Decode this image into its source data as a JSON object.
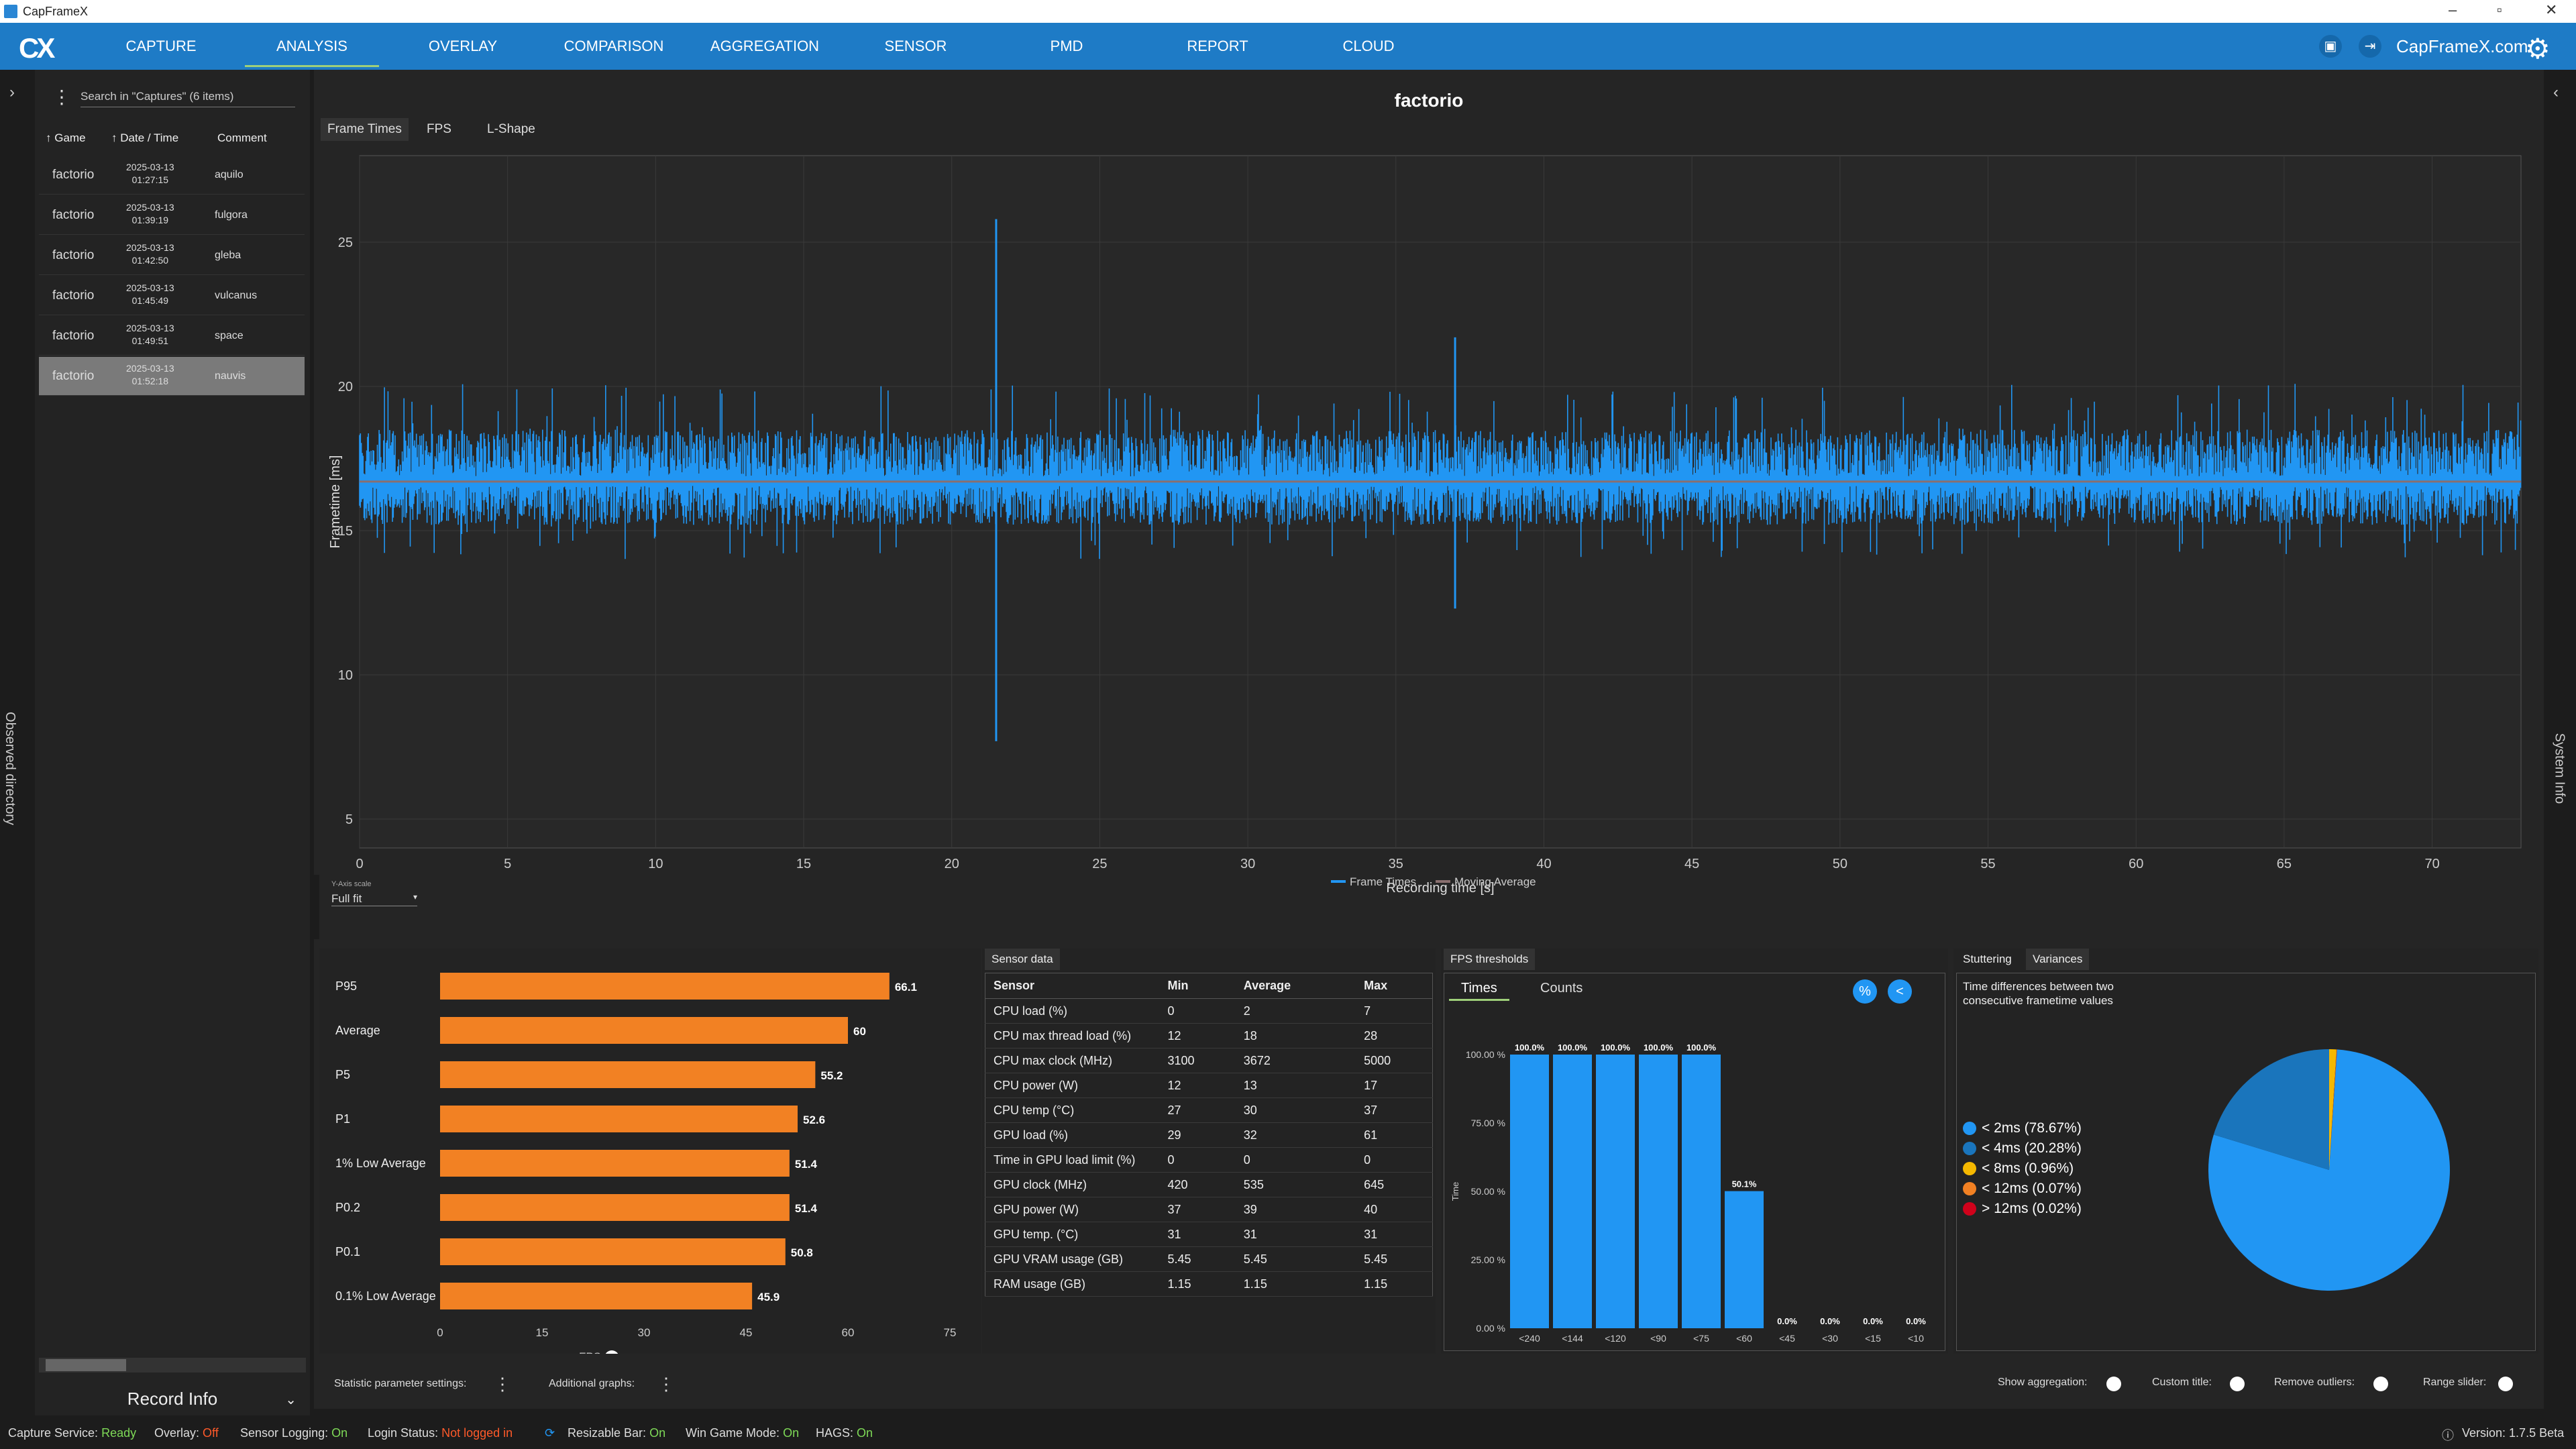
{
  "window": {
    "title": "CapFrameX"
  },
  "nav": {
    "items": [
      "CAPTURE",
      "ANALYSIS",
      "OVERLAY",
      "COMPARISON",
      "AGGREGATION",
      "SENSOR",
      "PMD",
      "REPORT",
      "CLOUD"
    ],
    "active": "ANALYSIS",
    "site": "CapFrameX.com"
  },
  "left_edge": {
    "label": "Observed directory"
  },
  "right_edge": {
    "label": "System Info"
  },
  "captures": {
    "search_placeholder": "Search in \"Captures\" (6 items)",
    "columns": [
      "Game",
      "Date / Time",
      "Comment"
    ],
    "rows": [
      {
        "game": "factorio",
        "date": "2025-03-13",
        "time": "01:27:15",
        "comment": "aquilo"
      },
      {
        "game": "factorio",
        "date": "2025-03-13",
        "time": "01:39:19",
        "comment": "fulgora"
      },
      {
        "game": "factorio",
        "date": "2025-03-13",
        "time": "01:42:50",
        "comment": "gleba"
      },
      {
        "game": "factorio",
        "date": "2025-03-13",
        "time": "01:45:49",
        "comment": "vulcanus"
      },
      {
        "game": "factorio",
        "date": "2025-03-13",
        "time": "01:49:51",
        "comment": "space"
      },
      {
        "game": "factorio",
        "date": "2025-03-13",
        "time": "01:52:18",
        "comment": "nauvis"
      }
    ],
    "selected_index": 5,
    "record_info": "Record Info"
  },
  "analysis": {
    "title": "factorio",
    "tabs": [
      "Frame Times",
      "FPS",
      "L-Shape"
    ],
    "active_tab": "Frame Times",
    "yscale_label": "Y-Axis scale",
    "yscale_value": "Full fit"
  },
  "chart_data": {
    "type": "line",
    "xlabel": "Recording time [s]",
    "ylabel": "Frametime [ms]",
    "xlim": [
      0,
      73
    ],
    "ylim": [
      4,
      28
    ],
    "xticks": [
      0,
      5,
      10,
      15,
      20,
      25,
      30,
      35,
      40,
      45,
      50,
      55,
      60,
      65,
      70
    ],
    "yticks": [
      5,
      10,
      15,
      20,
      25
    ],
    "series": [
      {
        "name": "Frame Times",
        "baseline": 16.7,
        "band": [
          15.2,
          18.5
        ],
        "spikes": [
          {
            "x": 21.5,
            "min": 7.7,
            "max": 25.8
          },
          {
            "x": 37.0,
            "min": 12.3,
            "max": 21.7
          }
        ]
      },
      {
        "name": "Moving Average",
        "value": 16.7
      }
    ],
    "colors": {
      "frame_times": "#2196f3",
      "moving_average": "#8a6f6f"
    }
  },
  "stats": {
    "labels": [
      "P95",
      "Average",
      "P5",
      "P1",
      "1% Low Average",
      "P0.2",
      "P0.1",
      "0.1% Low Average"
    ],
    "values": [
      66.1,
      60,
      55.2,
      52.6,
      51.4,
      51.4,
      50.8,
      45.9
    ],
    "xticks": [
      0,
      15,
      30,
      45,
      60,
      75
    ],
    "xlim": [
      0,
      75
    ],
    "unit_left": "FPS",
    "unit_right": "ms",
    "color": "#f28123"
  },
  "sensor": {
    "header": "Sensor data",
    "columns": [
      "Sensor",
      "Min",
      "Average",
      "Max"
    ],
    "rows": [
      [
        "CPU load (%)",
        "0",
        "2",
        "7"
      ],
      [
        "CPU max thread load (%)",
        "12",
        "18",
        "28"
      ],
      [
        "CPU max clock (MHz)",
        "3100",
        "3672",
        "5000"
      ],
      [
        "CPU power (W)",
        "12",
        "13",
        "17"
      ],
      [
        "CPU temp (°C)",
        "27",
        "30",
        "37"
      ],
      [
        "GPU load (%)",
        "29",
        "32",
        "61"
      ],
      [
        "Time in GPU load limit (%)",
        "0",
        "0",
        "0"
      ],
      [
        "GPU clock (MHz)",
        "420",
        "535",
        "645"
      ],
      [
        "GPU power (W)",
        "37",
        "39",
        "40"
      ],
      [
        "GPU temp. (°C)",
        "31",
        "31",
        "31"
      ],
      [
        "GPU VRAM usage (GB)",
        "5.45",
        "5.45",
        "5.45"
      ],
      [
        "RAM usage (GB)",
        "1.15",
        "1.15",
        "1.15"
      ]
    ]
  },
  "fps_thresholds": {
    "header": "FPS thresholds",
    "tabs": [
      "Times",
      "Counts"
    ],
    "ylabel": "Time",
    "yticks": [
      "100.00 %",
      "75.00 %",
      "50.00 %",
      "25.00 %",
      "0.00 %"
    ],
    "categories": [
      "<240",
      "<144",
      "<120",
      "<90",
      "<75",
      "<60",
      "<45",
      "<30",
      "<15",
      "<10"
    ],
    "values": [
      100,
      100,
      100,
      100,
      100,
      50.1,
      0,
      0,
      0,
      0
    ],
    "labels": [
      "100.0%",
      "100.0%",
      "100.0%",
      "100.0%",
      "100.0%",
      "50.1%",
      "0.0%",
      "0.0%",
      "0.0%",
      "0.0%"
    ],
    "btn_percent": "%",
    "btn_share": "<"
  },
  "variances": {
    "tabs": [
      "Stuttering",
      "Variances"
    ],
    "active_tab": "Variances",
    "description": "Time differences between two consecutive frametime values",
    "items": [
      {
        "label": "< 2ms (78.67%)",
        "value": 78.67,
        "color": "#2196f3"
      },
      {
        "label": "< 4ms (20.28%)",
        "value": 20.28,
        "color": "#1a75bc"
      },
      {
        "label": "< 8ms (0.96%)",
        "value": 0.96,
        "color": "#f5b800"
      },
      {
        "label": "< 12ms (0.07%)",
        "value": 0.07,
        "color": "#f28123"
      },
      {
        "label": "> 12ms (0.02%)",
        "value": 0.02,
        "color": "#d0021b"
      }
    ]
  },
  "settings": {
    "statistic": "Statistic parameter settings:",
    "additional": "Additional graphs:",
    "show_aggregation": "Show aggregation:",
    "custom_title": "Custom title:",
    "remove_outliers": "Remove outliers:",
    "range_slider": "Range slider:"
  },
  "status": {
    "capture_service": "Capture Service:",
    "capture_service_val": "Ready",
    "overlay": "Overlay:",
    "overlay_val": "Off",
    "sensor_logging": "Sensor Logging:",
    "sensor_logging_val": "On",
    "login": "Login Status:",
    "login_val": "Not logged in",
    "resizable": "Resizable Bar:",
    "resizable_val": "On",
    "win_game": "Win Game Mode:",
    "win_game_val": "On",
    "hags": "HAGS:",
    "hags_val": "On",
    "version": "Version: 1.7.5 Beta"
  }
}
